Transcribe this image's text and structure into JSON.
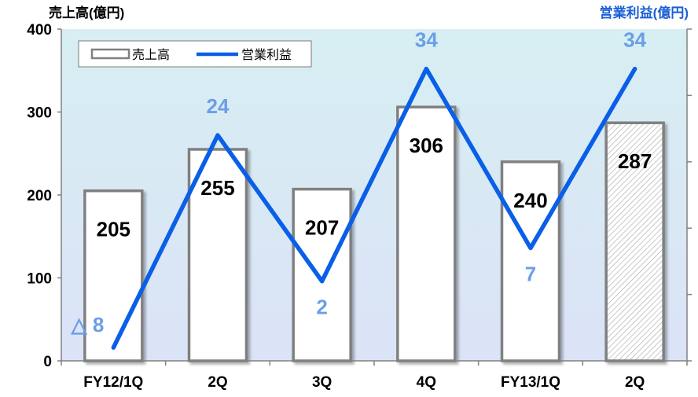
{
  "chart_data": {
    "type": "bar",
    "title": "",
    "left_axis_title": "売上高(億円)",
    "right_axis_title": "営業利益(億円)",
    "categories": [
      "FY12/1Q",
      "2Q",
      "3Q",
      "4Q",
      "FY13/1Q",
      "2Q"
    ],
    "ylim": [
      0,
      400
    ],
    "y_ticks": [
      "0",
      "100",
      "200",
      "300",
      "400"
    ],
    "y2lim": [
      -10,
      40
    ],
    "series": [
      {
        "name": "売上高",
        "type": "bar",
        "axis": "left",
        "values": [
          205,
          255,
          207,
          306,
          240,
          287
        ],
        "labels": [
          "205",
          "255",
          "207",
          "306",
          "240",
          "287"
        ],
        "last_bar_hatched": true
      },
      {
        "name": "営業利益",
        "type": "line",
        "axis": "right",
        "values": [
          -8,
          24,
          2,
          34,
          7,
          34
        ],
        "labels": [
          "△ 8",
          "24",
          "2",
          "34",
          "7",
          "34"
        ]
      }
    ],
    "legend": {
      "position": "top-left",
      "items": [
        "売上高",
        "営業利益"
      ]
    },
    "grid": false,
    "colors": {
      "bar_fill": "#ffffff",
      "bar_border": "#808080",
      "line": "#0a5fe8",
      "profit_label": "#6b9ee8",
      "left_title": "#000000",
      "right_title": "#1a5fd6",
      "plot_bg_top": "#d7eef2",
      "plot_bg_bottom": "#dbe3f7"
    }
  }
}
